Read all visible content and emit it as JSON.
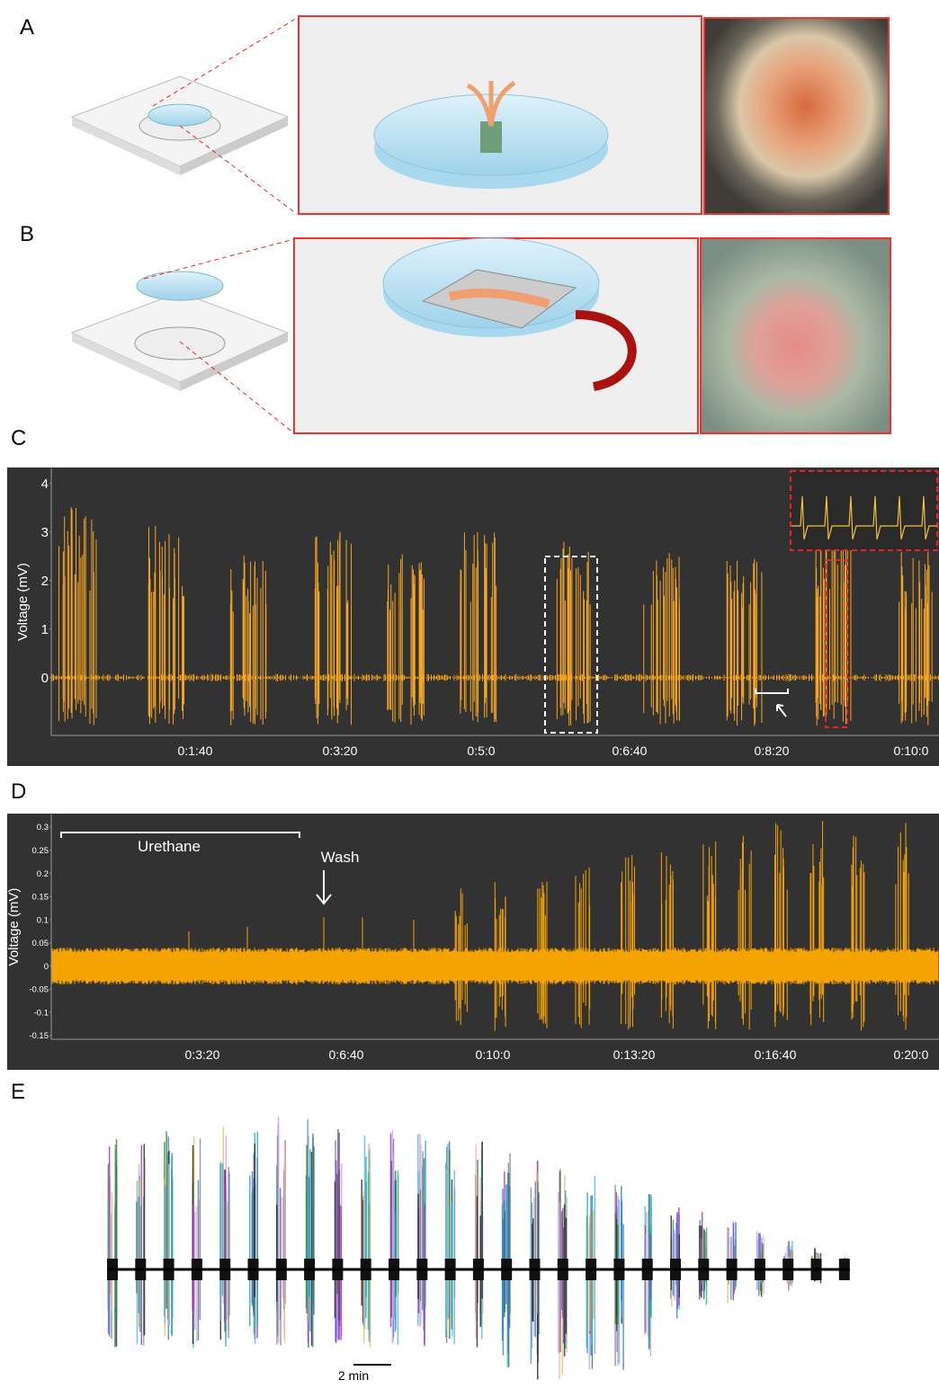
{
  "panel_labels": [
    "A",
    "B",
    "C",
    "D",
    "E"
  ],
  "panel_c": {
    "ylabel": "Voltage (mV)",
    "ylim": [
      -1.19,
      4.31
    ],
    "yticks": [
      0,
      1,
      2,
      3,
      4
    ],
    "xticks": [
      "0:1:40",
      "0:3:20",
      "0:5:0",
      "0:6:40",
      "0:8:20",
      "0:10:0"
    ]
  },
  "panel_d": {
    "ylabel": "Voltage (mV)",
    "ylim": [
      -0.158,
      0.327
    ],
    "yticks": [
      0.3,
      0.25,
      0.2,
      0.15,
      0.1,
      0.05,
      0,
      -0.05,
      -0.1,
      -0.15
    ],
    "xticks": [
      "0:3:20",
      "0:6:40",
      "0:10:0",
      "0:13:20",
      "0:16:40",
      "0:20:0"
    ],
    "urethane": "Urethane",
    "wash": "Wash"
  },
  "panel_e": {
    "scalebar": "2 min"
  }
}
